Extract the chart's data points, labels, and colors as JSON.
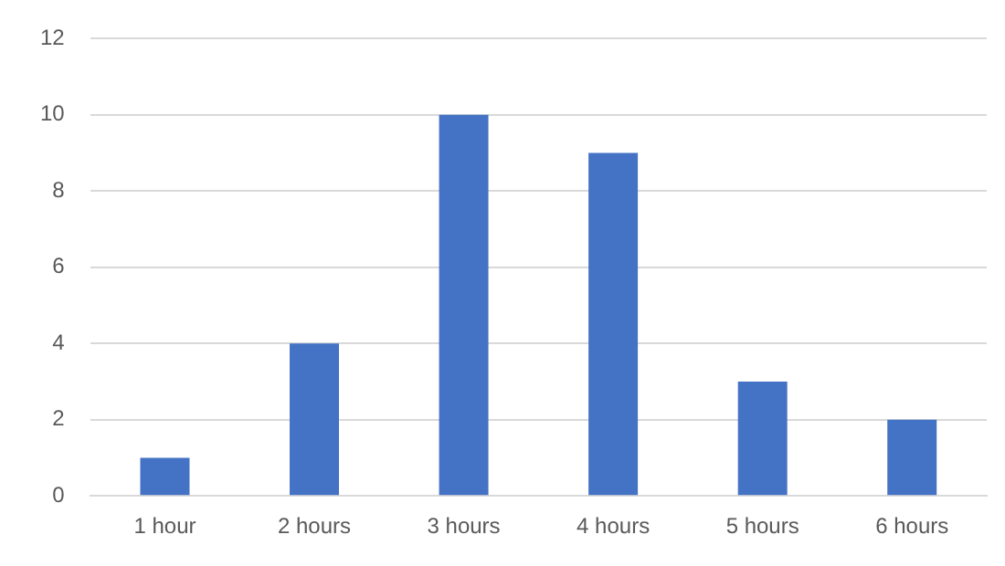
{
  "chart_data": {
    "type": "bar",
    "categories": [
      "1 hour",
      "2 hours",
      "3 hours",
      "4 hours",
      "5 hours",
      "6 hours"
    ],
    "values": [
      1,
      4,
      10,
      9,
      3,
      2
    ],
    "color": "#4472c4",
    "ylim": [
      0,
      12
    ],
    "yticks": [
      0,
      2,
      4,
      6,
      8,
      10,
      12
    ],
    "grid": "y",
    "legend": false
  }
}
